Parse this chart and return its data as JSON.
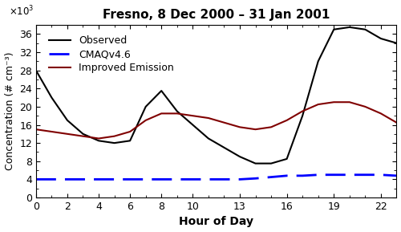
{
  "title": "Fresno, 8 Dec 2000 – 31 Jan 2001",
  "xlabel": "Hour of Day",
  "ylabel": "Concentration (# cm⁻³)",
  "xticks": [
    0,
    2,
    4,
    6,
    8,
    10,
    13,
    16,
    19,
    22
  ],
  "yticks": [
    0,
    4,
    8,
    12,
    16,
    20,
    24,
    28,
    32,
    36
  ],
  "ylim": [
    0,
    38
  ],
  "xlim": [
    0,
    23
  ],
  "hours": [
    0,
    1,
    2,
    3,
    4,
    5,
    6,
    7,
    8,
    9,
    10,
    11,
    12,
    13,
    14,
    15,
    16,
    17,
    18,
    19,
    20,
    21,
    22,
    23
  ],
  "observed": [
    28,
    22,
    17,
    14,
    12.5,
    12,
    12.5,
    20,
    23.5,
    19,
    16,
    13,
    11,
    9,
    7.5,
    7.5,
    8.5,
    18,
    30,
    37,
    37.5,
    37,
    35,
    34
  ],
  "cmaqv46": [
    4.0,
    4.0,
    4.0,
    4.0,
    4.0,
    4.0,
    4.0,
    4.0,
    4.0,
    4.0,
    4.0,
    4.0,
    4.0,
    4.0,
    4.2,
    4.5,
    4.8,
    4.8,
    5.0,
    5.0,
    5.0,
    5.0,
    5.0,
    4.8
  ],
  "improved": [
    15,
    14.5,
    14,
    13.5,
    13,
    13.5,
    14.5,
    17,
    18.5,
    18.5,
    18,
    17.5,
    16.5,
    15.5,
    15,
    15.5,
    17,
    19,
    20.5,
    21,
    21,
    20,
    18.5,
    16.5
  ],
  "observed_color": "#000000",
  "cmaqv46_color": "#0000FF",
  "improved_color": "#800000",
  "observed_label": "Observed",
  "cmaqv46_label": "CMAQv4.6",
  "improved_label": "Improved Emission",
  "observed_lw": 1.5,
  "cmaqv46_lw": 2.0,
  "improved_lw": 1.5,
  "title_fontsize": 11,
  "label_fontsize": 10,
  "tick_fontsize": 9,
  "legend_fontsize": 9
}
